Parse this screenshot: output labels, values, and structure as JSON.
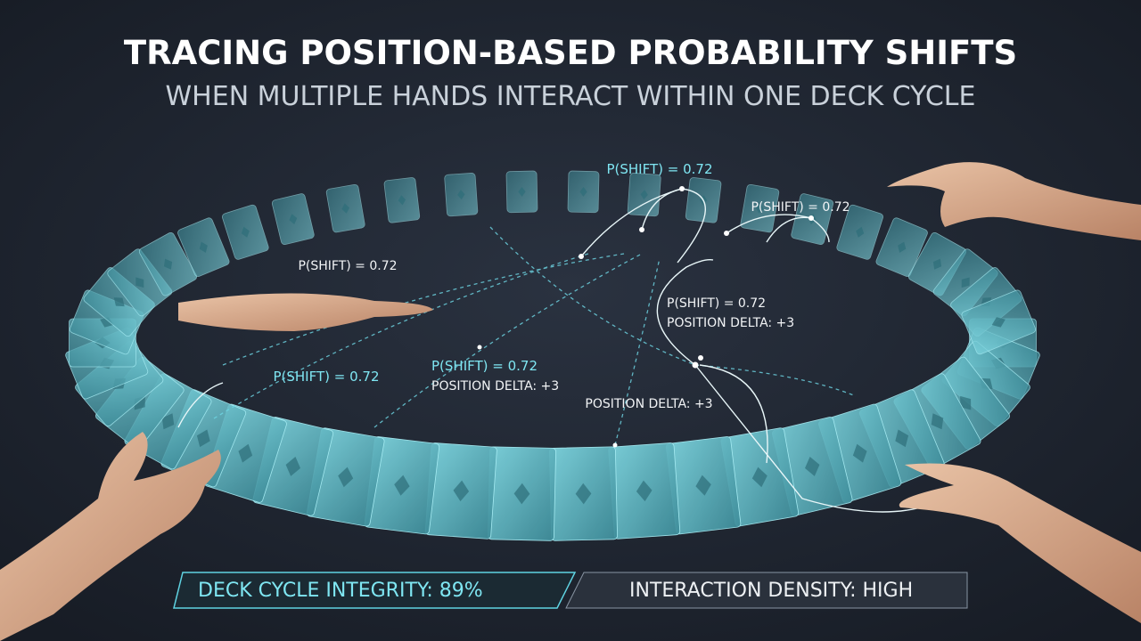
{
  "header": {
    "title": "TRACING POSITION-BASED PROBABILITY SHIFTS",
    "subtitle": "WHEN MULTIPLE HANDS INTERACT WITHIN ONE DECK CYCLE"
  },
  "annotations": [
    {
      "text": "P(SHIFT) = 0.72"
    },
    {
      "text": "P(SHIFT) = 0.72"
    },
    {
      "text": "P(SHIFT) = 0.72"
    },
    {
      "text": "P(SHIFT) = 0.72",
      "detail": "POSITION DELTA: +3"
    },
    {
      "text": "P(SHIFT) = 0.72",
      "detail": "POSITION DELTA: +3"
    },
    {
      "text": "P(SHIFT) = 0.72"
    },
    {
      "text": "POSITION DELTA: +3"
    }
  ],
  "footer": {
    "left": "DECK CYCLE INTEGRITY: 89%",
    "right": "INTERACTION DENSITY: HIGH"
  }
}
